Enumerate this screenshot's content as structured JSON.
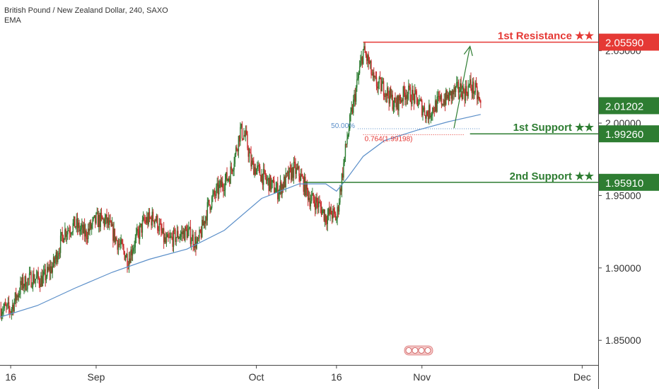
{
  "header": {
    "title": "British Pound / New Zealand Dollar, 240, SAXO",
    "indicator": "EMA"
  },
  "colors": {
    "up": "#2e7d32",
    "down": "#c62828",
    "ema": "#5b8fc9",
    "resistance": "#e53935",
    "support": "#2e7d32",
    "fib50": "#5b8fc9",
    "fib764": "#e53935",
    "arrow": "#2e7d32",
    "axis_text": "#333333"
  },
  "chart_data": {
    "type": "candlestick",
    "title": "British Pound / New Zealand Dollar, 240, SAXO",
    "ylim": [
      1.833,
      2.085
    ],
    "y_ticks": [
      {
        "value": 2.05,
        "label": "2.05000"
      },
      {
        "value": 2.0,
        "label": "2.00000"
      },
      {
        "value": 1.95,
        "label": "1.95000"
      },
      {
        "value": 1.9,
        "label": "1.90000"
      },
      {
        "value": 1.85,
        "label": "1.85000"
      }
    ],
    "x_ticks": [
      {
        "date": "2018-08-16",
        "label": "16"
      },
      {
        "date": "2018-09-01",
        "label": "Sep"
      },
      {
        "date": "2018-10-01",
        "label": "Oct"
      },
      {
        "date": "2018-10-16",
        "label": "16"
      },
      {
        "date": "2018-11-01",
        "label": "Nov"
      },
      {
        "date": "2018-12-01",
        "label": "Dec"
      }
    ],
    "xlim": [
      "2018-08-14",
      "2018-12-04"
    ],
    "close_path": [
      [
        "2018-08-14",
        1.872
      ],
      [
        "2018-08-16",
        1.871
      ],
      [
        "2018-08-18",
        1.888
      ],
      [
        "2018-08-20",
        1.893
      ],
      [
        "2018-08-22",
        1.892
      ],
      [
        "2018-08-24",
        1.902
      ],
      [
        "2018-08-26",
        1.925
      ],
      [
        "2018-08-28",
        1.93
      ],
      [
        "2018-08-30",
        1.923
      ],
      [
        "2018-09-01",
        1.933
      ],
      [
        "2018-09-03",
        1.932
      ],
      [
        "2018-09-05",
        1.918
      ],
      [
        "2018-09-07",
        1.906
      ],
      [
        "2018-09-08",
        1.916
      ],
      [
        "2018-09-10",
        1.932
      ],
      [
        "2018-09-12",
        1.935
      ],
      [
        "2018-09-14",
        1.917
      ],
      [
        "2018-09-16",
        1.922
      ],
      [
        "2018-09-18",
        1.925
      ],
      [
        "2018-09-20",
        1.916
      ],
      [
        "2018-09-22",
        1.943
      ],
      [
        "2018-09-24",
        1.955
      ],
      [
        "2018-09-26",
        1.964
      ],
      [
        "2018-09-27",
        1.978
      ],
      [
        "2018-09-28",
        1.995
      ],
      [
        "2018-09-29",
        1.99
      ],
      [
        "2018-09-30",
        1.972
      ],
      [
        "2018-10-01",
        1.968
      ],
      [
        "2018-10-03",
        1.96
      ],
      [
        "2018-10-05",
        1.953
      ],
      [
        "2018-10-06",
        1.958
      ],
      [
        "2018-10-08",
        1.968
      ],
      [
        "2018-10-09",
        1.965
      ],
      [
        "2018-10-10",
        1.957
      ],
      [
        "2018-10-11",
        1.948
      ],
      [
        "2018-10-12",
        1.946
      ],
      [
        "2018-10-13",
        1.942
      ],
      [
        "2018-10-14",
        1.935
      ],
      [
        "2018-10-15",
        1.938
      ],
      [
        "2018-10-16",
        1.934
      ],
      [
        "2018-10-17",
        1.962
      ],
      [
        "2018-10-18",
        1.99
      ],
      [
        "2018-10-19",
        2.01
      ],
      [
        "2018-10-20",
        2.03
      ],
      [
        "2018-10-21",
        2.05
      ],
      [
        "2018-10-22",
        2.042
      ],
      [
        "2018-10-23",
        2.028
      ],
      [
        "2018-10-25",
        2.024
      ],
      [
        "2018-10-27",
        2.012
      ],
      [
        "2018-10-29",
        2.022
      ],
      [
        "2018-10-31",
        2.016
      ],
      [
        "2018-11-02",
        2.006
      ],
      [
        "2018-11-04",
        2.014
      ],
      [
        "2018-11-06",
        2.018
      ],
      [
        "2018-11-08",
        2.024
      ],
      [
        "2018-11-09",
        2.021
      ],
      [
        "2018-11-10",
        2.026
      ],
      [
        "2018-11-11",
        2.022
      ],
      [
        "2018-11-12",
        2.012
      ]
    ],
    "ema_path": [
      [
        "2018-08-14",
        1.866
      ],
      [
        "2018-08-21",
        1.874
      ],
      [
        "2018-08-28",
        1.886
      ],
      [
        "2018-09-04",
        1.897
      ],
      [
        "2018-09-11",
        1.906
      ],
      [
        "2018-09-18",
        1.913
      ],
      [
        "2018-09-25",
        1.926
      ],
      [
        "2018-10-02",
        1.948
      ],
      [
        "2018-10-09",
        1.958
      ],
      [
        "2018-10-14",
        1.958
      ],
      [
        "2018-10-16",
        1.953
      ],
      [
        "2018-10-18",
        1.962
      ],
      [
        "2018-10-21",
        1.977
      ],
      [
        "2018-10-25",
        1.988
      ],
      [
        "2018-10-31",
        1.995
      ],
      [
        "2018-11-06",
        2.001
      ],
      [
        "2018-11-12",
        2.006
      ]
    ],
    "levels": [
      {
        "name": "1st Resistance ★★",
        "value": 2.0559,
        "label": "2.05590",
        "kind": "resistance",
        "start": "2018-10-21"
      },
      {
        "name": "1st Support ★★",
        "value": 1.9926,
        "label": "1.99260",
        "kind": "support",
        "start": "2018-11-10"
      },
      {
        "name": "2nd Support ★★",
        "value": 1.9591,
        "label": "1.95910",
        "kind": "support",
        "start": "2018-10-10"
      }
    ],
    "current_price": {
      "value": 2.01202,
      "label": "2.01202"
    },
    "fib_levels": [
      {
        "label": "50.00%",
        "value": 1.9961,
        "start": "2018-10-20",
        "end": "2018-11-12"
      },
      {
        "label": "0.764(1.99198)",
        "value": 1.99198,
        "start": "2018-10-21",
        "end": "2018-11-09"
      }
    ],
    "projection_arrow": {
      "from": [
        "2018-11-07",
        1.9965
      ],
      "to": [
        "2018-11-10",
        2.053
      ]
    }
  }
}
